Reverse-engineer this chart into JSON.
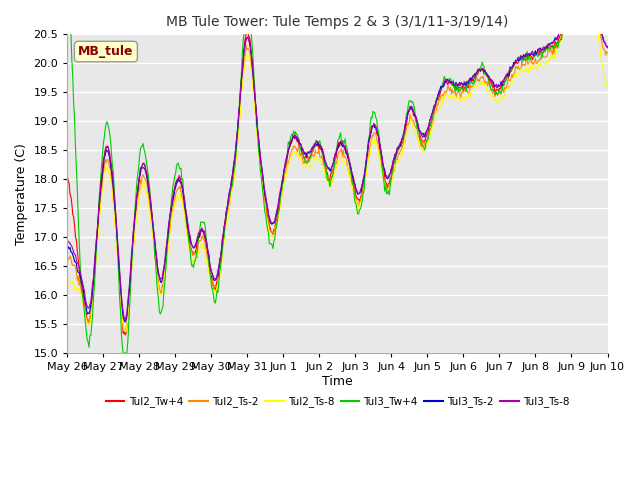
{
  "title": "MB Tule Tower: Tule Temps 2 & 3 (3/1/11-3/19/14)",
  "xlabel": "Time",
  "ylabel": "Temperature (C)",
  "ylim": [
    15.0,
    20.5
  ],
  "yticks": [
    15.0,
    15.5,
    16.0,
    16.5,
    17.0,
    17.5,
    18.0,
    18.5,
    19.0,
    19.5,
    20.0,
    20.5
  ],
  "legend_label": "MB_tule",
  "legend_label_color": "#8B0000",
  "legend_box_color": "#ffffcc",
  "series_labels": [
    "Tul2_Tw+4",
    "Tul2_Ts-2",
    "Tul2_Ts-8",
    "Tul3_Tw+4",
    "Tul3_Ts-2",
    "Tul3_Ts-8"
  ],
  "series_colors": [
    "#ff0000",
    "#ff8800",
    "#ffff00",
    "#00cc00",
    "#0000cc",
    "#aa00aa"
  ],
  "xtick_labels": [
    "May 26",
    "May 27",
    "May 28",
    "May 29",
    "May 30",
    "May 31",
    "Jun 1",
    "Jun 2",
    "Jun 3",
    "Jun 4",
    "Jun 5",
    "Jun 6",
    "Jun 7",
    "Jun 8",
    "Jun 9",
    "Jun 10"
  ],
  "n_points": 600
}
